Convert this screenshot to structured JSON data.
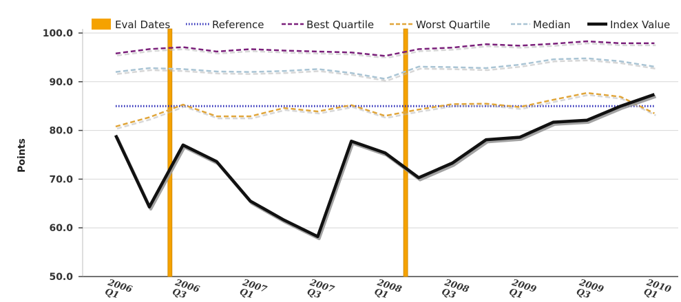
{
  "chart_data": {
    "type": "line",
    "title": "",
    "xlabel": "",
    "ylabel": "Points",
    "ylim": [
      50,
      100
    ],
    "yticks": [
      "50.0",
      "60.0",
      "70.0",
      "80.0",
      "90.0",
      "100.0"
    ],
    "ytick_values": [
      50,
      60,
      70,
      80,
      90,
      100
    ],
    "grid": true,
    "legend_position": "top",
    "x_tick_labels": [
      {
        "year": "2006",
        "quarter": "Q1"
      },
      {
        "year": "2006",
        "quarter": "Q3"
      },
      {
        "year": "2007",
        "quarter": "Q1"
      },
      {
        "year": "2007",
        "quarter": "Q3"
      },
      {
        "year": "2008",
        "quarter": "Q1"
      },
      {
        "year": "2008",
        "quarter": "Q3"
      },
      {
        "year": "2009",
        "quarter": "Q1"
      },
      {
        "year": "2009",
        "quarter": "Q3"
      },
      {
        "year": "2010",
        "quarter": "Q1"
      }
    ],
    "x": [
      "2006 Q1",
      "2006 Q2",
      "2006 Q3",
      "2006 Q4",
      "2007 Q1",
      "2007 Q2",
      "2007 Q3",
      "2007 Q4",
      "2008 Q1",
      "2008 Q2",
      "2008 Q3",
      "2008 Q4",
      "2009 Q1",
      "2009 Q2",
      "2009 Q3",
      "2009 Q4",
      "2010 Q1"
    ],
    "eval_dates": {
      "name": "Eval Dates",
      "positions": [
        "2006 Q3",
        "2008 Q2"
      ],
      "color": "#f5a200"
    },
    "series": [
      {
        "name": "Reference",
        "color": "#2b2bb8",
        "style": "dotted",
        "values": [
          85,
          85,
          85,
          85,
          85,
          85,
          85,
          85,
          85,
          85,
          85,
          85,
          85,
          85,
          85,
          85,
          85
        ]
      },
      {
        "name": "Best Quartile",
        "color": "#7a1f7a",
        "style": "dashed",
        "values": [
          95.8,
          96.7,
          97.1,
          96.2,
          96.7,
          96.4,
          96.2,
          96.0,
          95.3,
          96.7,
          97.0,
          97.7,
          97.4,
          97.8,
          98.3,
          97.9,
          97.9
        ]
      },
      {
        "name": "Worst Quartile",
        "color": "#e0a53a",
        "style": "dashed",
        "values": [
          80.8,
          82.7,
          85.3,
          82.9,
          82.9,
          84.6,
          83.9,
          85.2,
          83.0,
          84.3,
          85.4,
          85.5,
          84.8,
          86.3,
          87.7,
          86.9,
          83.5
        ]
      },
      {
        "name": "Median",
        "color": "#a9c4d4",
        "style": "dashed",
        "values": [
          92.0,
          92.8,
          92.6,
          92.1,
          92.0,
          92.2,
          92.6,
          91.8,
          90.6,
          93.1,
          93.0,
          92.8,
          93.5,
          94.6,
          94.8,
          94.2,
          93.1
        ]
      },
      {
        "name": "Index Value",
        "color": "#111111",
        "style": "solid",
        "values": [
          79.0,
          64.3,
          77.0,
          73.6,
          65.5,
          61.6,
          58.2,
          77.8,
          75.4,
          70.3,
          73.3,
          78.1,
          78.6,
          81.7,
          82.1,
          85.0,
          87.4
        ]
      }
    ]
  }
}
